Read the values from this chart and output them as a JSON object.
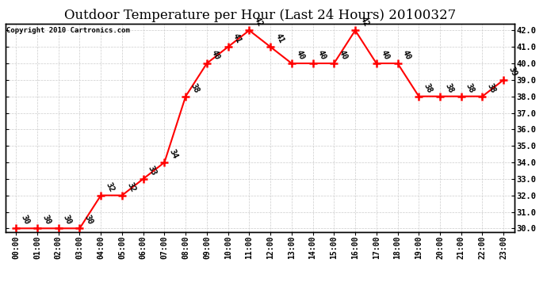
{
  "title": "Outdoor Temperature per Hour (Last 24 Hours) 20100327",
  "copyright": "Copyright 2010 Cartronics.com",
  "hours": [
    "00:00",
    "01:00",
    "02:00",
    "03:00",
    "04:00",
    "05:00",
    "06:00",
    "07:00",
    "08:00",
    "09:00",
    "10:00",
    "11:00",
    "12:00",
    "13:00",
    "14:00",
    "15:00",
    "16:00",
    "17:00",
    "18:00",
    "19:00",
    "20:00",
    "21:00",
    "22:00",
    "23:00"
  ],
  "temps": [
    30,
    30,
    30,
    30,
    32,
    32,
    33,
    34,
    38,
    40,
    41,
    42,
    41,
    40,
    40,
    40,
    42,
    40,
    40,
    38,
    38,
    38,
    38,
    39
  ],
  "ylim_min": 29.8,
  "ylim_max": 42.4,
  "yticks": [
    30.0,
    31.0,
    32.0,
    33.0,
    34.0,
    35.0,
    36.0,
    37.0,
    38.0,
    39.0,
    40.0,
    41.0,
    42.0
  ],
  "line_color": "red",
  "marker_color": "red",
  "bg_color": "#ffffff",
  "grid_color": "#cccccc",
  "title_fontsize": 12,
  "annotation_fontsize": 7.5,
  "annotation_rotation": -65
}
